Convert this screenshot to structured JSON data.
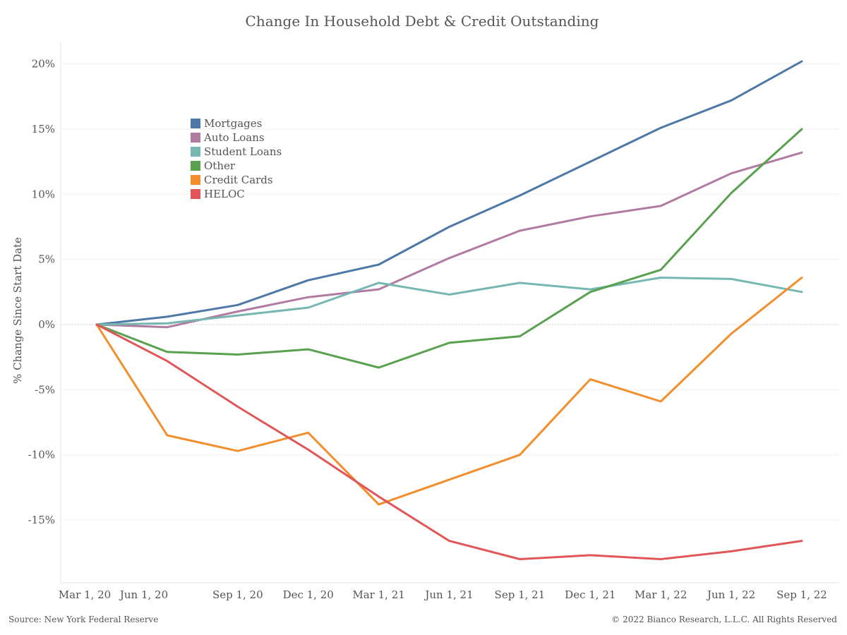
{
  "chart_data": {
    "type": "line",
    "title": "Change In Household Debt & Credit Outstanding",
    "ylabel": "% Change Since Start Date",
    "xlabel": "",
    "categories": [
      "Mar 1, 20",
      "Jun 1, 20",
      "Sep 1, 20",
      "Dec 1, 20",
      "Mar 1, 21",
      "Jun 1, 21",
      "Sep 1, 21",
      "Dec 1, 21",
      "Mar 1, 22",
      "Jun 1, 22",
      "Sep 1, 22"
    ],
    "extra_point_count_note": "",
    "y_ticks": [
      20,
      15,
      10,
      5,
      0,
      -5,
      -10,
      -15
    ],
    "y_tick_labels": [
      "20%",
      "15%",
      "10%",
      "5%",
      "0%",
      "-5%",
      "-10%",
      "-15%"
    ],
    "ylim": [
      -20,
      21
    ],
    "grid": true,
    "legend_position": "top-left",
    "series": [
      {
        "name": "Mortgages",
        "color": "#4e79a7",
        "values": [
          0,
          0.6,
          1.5,
          3.4,
          4.6,
          7.5,
          9.9,
          12.5,
          15.1,
          17.2,
          20.2
        ]
      },
      {
        "name": "Auto Loans",
        "color": "#b07aa1",
        "values": [
          0,
          -0.2,
          1.0,
          2.1,
          2.7,
          5.1,
          7.2,
          8.3,
          9.1,
          11.6,
          13.2
        ]
      },
      {
        "name": "Student Loans",
        "color": "#76b7b2",
        "values": [
          0,
          0.1,
          0.7,
          1.3,
          3.2,
          2.3,
          3.2,
          2.7,
          3.6,
          3.5,
          2.5
        ]
      },
      {
        "name": "Other",
        "color": "#59a14f",
        "values": [
          0,
          -2.1,
          -2.3,
          -1.9,
          -3.3,
          -1.4,
          -0.9,
          2.5,
          4.2,
          10.1,
          15.0
        ]
      },
      {
        "name": "Credit Cards",
        "color": "#f28e2b",
        "values": [
          0,
          -8.5,
          -9.7,
          -8.3,
          -13.8,
          -11.9,
          -10.0,
          -4.2,
          -5.9,
          -0.7,
          3.6
        ]
      },
      {
        "name": "HELOC",
        "color": "#e15759",
        "values": [
          0,
          -2.8,
          -6.3,
          -9.6,
          -13.2,
          -16.6,
          -18.0,
          -17.7,
          -18.0,
          -17.4,
          -16.6
        ]
      }
    ]
  },
  "footer": {
    "source": "Source: New York Federal Reserve",
    "copyright": "© 2022 Bianco Research, L.L.C. All Rights Reserved"
  }
}
